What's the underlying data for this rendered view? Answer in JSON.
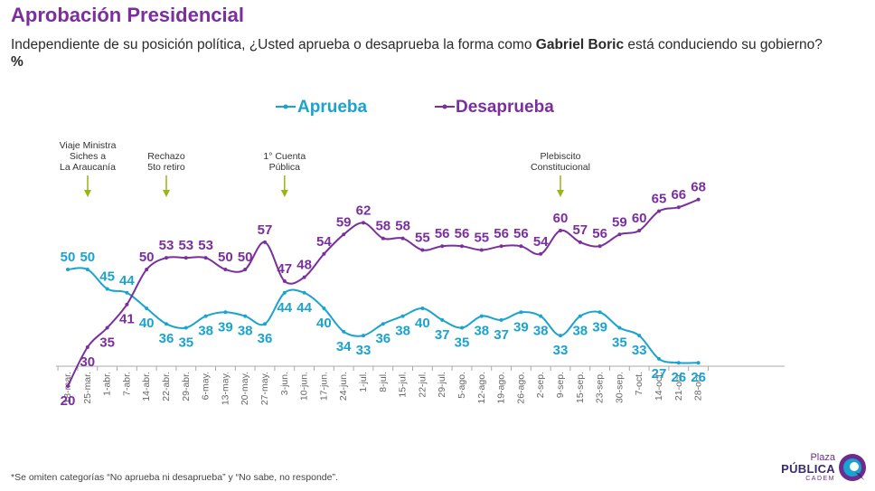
{
  "title": "Aprobación Presidencial",
  "subtitle": {
    "part1": "Independiente de su posición política, ¿Usted aprueba o desaprueba la forma como ",
    "bold_name": "Gabriel Boric",
    "part2": " está conduciendo su gobierno? ",
    "bold_unit": "%"
  },
  "footnote": "*Se omiten categorías “No aprueba ni desaprueba” y “No sabe, no responde”.",
  "logo": {
    "line1": "Plaza",
    "line2": "PÚBLICA",
    "line3": "CADEM"
  },
  "colors": {
    "aprueba": "#1ba3cf",
    "desaprueba": "#7b2f9e",
    "title": "#7b2f9e",
    "annotation_arrow": "#9cb316"
  },
  "chart_data": {
    "type": "line",
    "x": [
      "18-mar.",
      "25-mar.",
      "1-abr.",
      "7-abr.",
      "14-abr.",
      "22-abr.",
      "29-abr.",
      "6-may.",
      "13-may.",
      "20-may.",
      "27-may.",
      "3-jun.",
      "10-jun.",
      "17-jun.",
      "24-jun.",
      "1-jul.",
      "8-jul.",
      "15-jul.",
      "22-jul.",
      "29-jul.",
      "5-ago.",
      "12-ago.",
      "19-ago.",
      "26-ago.",
      "2-sep.",
      "9-sep.",
      "15-sep.",
      "23-sep.",
      "30-sep.",
      "7-oct.",
      "14-oct.",
      "21-oct.",
      "28-oct."
    ],
    "series": [
      {
        "name": "Aprueba",
        "values": [
          50,
          50,
          45,
          44,
          40,
          36,
          35,
          38,
          39,
          38,
          36,
          44,
          44,
          40,
          34,
          33,
          36,
          38,
          40,
          37,
          35,
          38,
          37,
          39,
          38,
          33,
          38,
          39,
          35,
          33,
          27,
          26,
          26
        ]
      },
      {
        "name": "Desaprueba",
        "values": [
          20,
          30,
          35,
          41,
          50,
          53,
          53,
          53,
          50,
          50,
          57,
          47,
          48,
          54,
          59,
          62,
          58,
          58,
          55,
          56,
          56,
          55,
          56,
          56,
          54,
          60,
          57,
          56,
          59,
          60,
          65,
          66,
          68
        ]
      }
    ],
    "annotations": [
      {
        "x": "18-mar.",
        "lines": [
          "Viaje Ministra",
          "Siches a",
          "La Araucanía"
        ]
      },
      {
        "x": "22-abr.",
        "lines": [
          "Rechazo",
          "5to retiro"
        ]
      },
      {
        "x": "3-jun.",
        "lines": [
          "1° Cuenta",
          "Pública"
        ]
      },
      {
        "x": "9-sep.",
        "lines": [
          "Plebiscito",
          "Constitucional"
        ]
      }
    ],
    "legend_position": "top-center",
    "grid": false
  }
}
